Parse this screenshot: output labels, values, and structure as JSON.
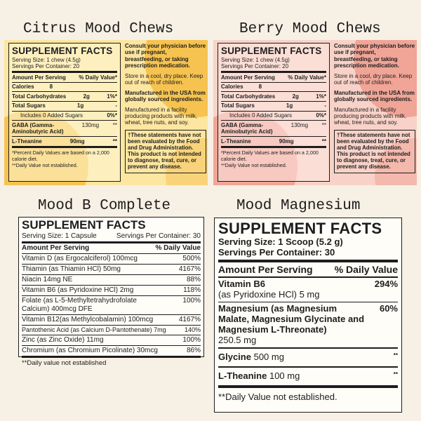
{
  "colors": {
    "background": "#f7f0e4",
    "citrus_panel": "#fde6a0",
    "citrus_accent": "#f6c350",
    "berry_panel": "#f8d2c8",
    "berry_accent": "#f0a597",
    "ink": "#1d1d1d"
  },
  "citrus": {
    "title": "Citrus Mood Chews",
    "facts_title": "SUPPLEMENT FACTS",
    "serving_size": "Serving Size: 1 chew (4.5g)",
    "servings_per_container": "Servings Per Container: 20",
    "amount_header": "Amount Per Serving",
    "dv_header": "% Daily Value*",
    "rows": [
      {
        "name": "Calories",
        "amount": "8",
        "dv": ""
      },
      {
        "name": "Total Carbohydrates",
        "amount": "2g",
        "dv": "1%*"
      },
      {
        "name": "Total Sugars",
        "amount": "1g",
        "dv": "-"
      },
      {
        "name": "Includes 0 Added Sugars",
        "amount": "",
        "dv": "0%*"
      },
      {
        "name": "GABA (Gamma-Aminobutyric Acid)",
        "amount": "130mg",
        "dv": "**"
      },
      {
        "name": "L-Theanine",
        "amount": "90mg",
        "dv": "**"
      }
    ],
    "footnote1": "*Percent Daily Values are based on a 2,000 calorie diet.",
    "footnote2": "**Daily Value not established.",
    "consult": "Consult your physician before use if pregnant, breastfeeding, or taking prescription medication.",
    "store": "Store in a cool, dry place. Keep out of reach of children.",
    "manufactured": "Manufactured in the USA from globally sourced ingredients.",
    "facility": "Manufactured in a facility producing products with milk, wheat, tree nuts, and soy.",
    "disclaimer": "†These statements have not been evaluated by the Food and Drug Administration. This product is not intended to diagnose, treat, cure, or prevent any disease."
  },
  "berry": {
    "title": "Berry Mood Chews",
    "facts_title": "SUPPLEMENT FACTS",
    "serving_size": "Serving Size: 1 chew (4.5g)",
    "servings_per_container": "Servings Per Container: 20",
    "amount_header": "Amount Per Serving",
    "dv_header": "% Daily Value*",
    "rows": [
      {
        "name": "Calories",
        "amount": "8",
        "dv": ""
      },
      {
        "name": "Total Carbohydrates",
        "amount": "2g",
        "dv": "1%*"
      },
      {
        "name": "Total Sugars",
        "amount": "1g",
        "dv": "-"
      },
      {
        "name": "Includes 0 Added Sugars",
        "amount": "",
        "dv": "0%*"
      },
      {
        "name": "GABA (Gamma-Aminobutyric Acid)",
        "amount": "130mg",
        "dv": "**"
      },
      {
        "name": "L-Theanine",
        "amount": "90mg",
        "dv": "**"
      }
    ],
    "footnote1": "*Percent Daily Values are based on a 2,000 calorie diet.",
    "footnote2": "**Daily Value not established.",
    "consult": "Consult your physician before use if pregnant, breastfeeding, or taking prescription medication.",
    "store": "Store in a cool, dry place. Keep out of reach of children.",
    "manufactured": "Manufactured in the USA from globally sourced ingredients.",
    "facility": "Manufactured in a facility producing products with milk, wheat, tree nuts, and soy.",
    "disclaimer": "†These statements have not been evaluated by the Food and Drug Administration. This product is not intended to diagnose, treat, cure, or prevent any disease."
  },
  "bcomplete": {
    "title": "Mood B Complete",
    "facts_title": "SUPPLEMENT FACTS",
    "serving_size": "Serving Size: 1 Capsule",
    "servings_per_container": "Servings Per Container: 30",
    "amount_header": "Amount Per Serving",
    "dv_header": "% Daily Value",
    "rows": [
      {
        "name": "Vitamin D (as Ergocalciferol) 100mcg",
        "dv": "500%"
      },
      {
        "name": "Thiamin (as Thiamin HCl) 50mg",
        "dv": "4167%"
      },
      {
        "name": "Niacin 14mg NE",
        "dv": "88%"
      },
      {
        "name": "Vitamin B6 (as Pyridoxine HCl) 2mg",
        "dv": "118%"
      },
      {
        "name": "Folate (as L-5-Methyltetrahydrofolate Calcium) 400mcg DFE",
        "dv": "100%"
      },
      {
        "name": "Vitamin B12(as Methylcobalamin) 100mcg",
        "dv": "4167%"
      },
      {
        "name": "Pantothenic Acid (as Calcium D-Pantothenate) 7mg",
        "dv": "140%"
      },
      {
        "name": "Zinc (as Zinc Oxide) 11mg",
        "dv": "100%"
      },
      {
        "name": "Chromium (as Chromium Picolinate) 30mcg",
        "dv": "86%"
      }
    ],
    "footnote": "**Daily value not established"
  },
  "magnesium": {
    "title": "Mood Magnesium",
    "facts_title": "SUPPLEMENT FACTS",
    "serving_size": "Serving Size: 1 Scoop (5.2 g)",
    "servings_per_container": "Servings Per Container: 30",
    "amount_header": "Amount Per Serving",
    "dv_header": "% Daily Value",
    "b6_name": "Vitamin B6",
    "b6_detail": "(as Pyridoxine HCl) 5 mg",
    "b6_dv": "294%",
    "mg_name": "Magnesium (as Magnesium Malate, Magnesium Glycinate and Magnesium L-Threonate)",
    "mg_amount": "250.5 mg",
    "mg_dv": "60%",
    "glycine_name": "Glycine",
    "glycine_amount": "500 mg",
    "glycine_dv": "**",
    "theanine_name": "L-Theanine",
    "theanine_amount": "100 mg",
    "theanine_dv": "**",
    "footnote": "**Daily Value not established."
  }
}
